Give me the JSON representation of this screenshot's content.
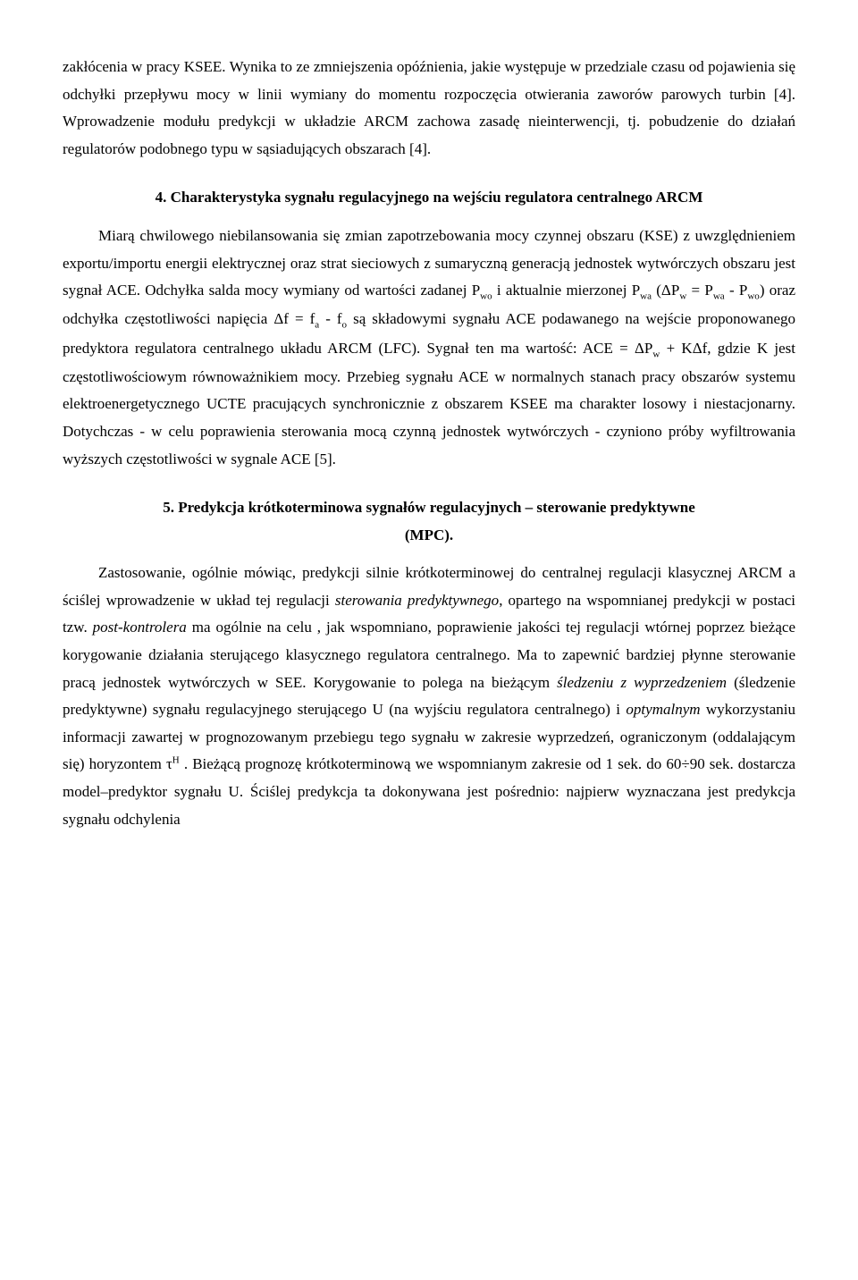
{
  "para1": "zakłócenia w pracy KSEE. Wynika to ze zmniejszenia opóźnienia, jakie występuje w przedziale czasu od pojawienia się odchyłki przepływu mocy w linii wymiany do momentu rozpoczęcia otwierania zaworów parowych turbin [4]. Wprowadzenie modułu predykcji w układzie ARCM zachowa zasadę nieinterwencji, tj. pobudzenie do działań regulatorów podobnego typu w sąsiadujących obszarach [4].",
  "heading1": "4. Charakterystyka sygnału regulacyjnego na wejściu regulatora centralnego ARCM",
  "para2_a": "Miarą chwilowego niebilansowania się zmian zapotrzebowania mocy czynnej obszaru (KSE) z uwzględnieniem exportu/importu energii elektrycznej oraz strat sieciowych z sumaryczną generacją jednostek wytwórczych obszaru jest sygnał ACE. Odchyłka salda mocy wymiany od wartości zadanej P",
  "sub_wo1": "wo",
  "para2_b": " i aktualnie mierzonej P",
  "sub_wa1": "wa",
  "para2_c": " (ΔP",
  "sub_w1": "w",
  "para2_d": " = P",
  "sub_wa2": "wa",
  "para2_e": " - P",
  "sub_wo2": "wo",
  "para2_f": ") oraz odchyłka częstotliwości napięcia Δf = f",
  "sub_a": "a",
  "para2_g": " - f",
  "sub_o": "o",
  "para2_h": " są składowymi sygnału ACE podawanego na wejście proponowanego predyktora regulatora centralnego układu ARCM (LFC). Sygnał ten ma wartość: ACE = ΔP",
  "sub_w2": "w",
  "para2_i": " + KΔf, gdzie K jest częstotliwościowym równoważnikiem mocy. Przebieg sygnału ACE w normalnych stanach pracy obszarów systemu elektroenergetycznego UCTE pracujących synchronicznie z obszarem KSEE ma charakter losowy i niestacjonarny. Dotychczas - w celu poprawienia sterowania mocą czynną jednostek wytwórczych - czyniono próby wyfiltrowania wyższych częstotliwości w sygnale ACE [5].",
  "heading2_line1": "5. Predykcja krótkoterminowa sygnałów regulacyjnych – sterowanie predyktywne",
  "heading2_line2": "(MPC).",
  "para3_a": "Zastosowanie, ogólnie mówiąc, predykcji silnie krótkoterminowej do centralnej regulacji klasycznej ARCM a ściślej wprowadzenie w układ tej regulacji ",
  "para3_em1": "sterowania predyktywnego",
  "para3_b": ", opartego na wspomnianej predykcji w postaci tzw. ",
  "para3_em2": "post-kontrolera",
  "para3_c": " ma ogólnie na celu , jak wspomniano, poprawienie jakości tej regulacji wtórnej poprzez bieżące korygowanie działania sterującego klasycznego regulatora centralnego. Ma to zapewnić bardziej płynne sterowanie pracą jednostek wytwórczych w SEE. Korygowanie to polega na bieżącym ",
  "para3_em3": "śledzeniu z wyprzedzeniem",
  "para3_d": " (śledzenie predyktywne) sygnału regulacyjnego sterującego U (na wyjściu regulatora centralnego) i ",
  "para3_em4": "optymalnym",
  "para3_e": " wykorzystaniu informacji zawartej w prognozowanym przebiegu tego sygnału w zakresie wyprzedzeń, ograniczonym (oddalającym się) horyzontem τ",
  "sup_H": "H",
  "para3_f": " . Bieżącą prognozę krótkoterminową we wspomnianym zakresie od 1 sek. do 60÷90 sek. dostarcza model–predyktor sygnału U. Ściślej predykcja ta dokonywana jest pośrednio: najpierw wyznaczana jest predykcja sygnału odchylenia"
}
